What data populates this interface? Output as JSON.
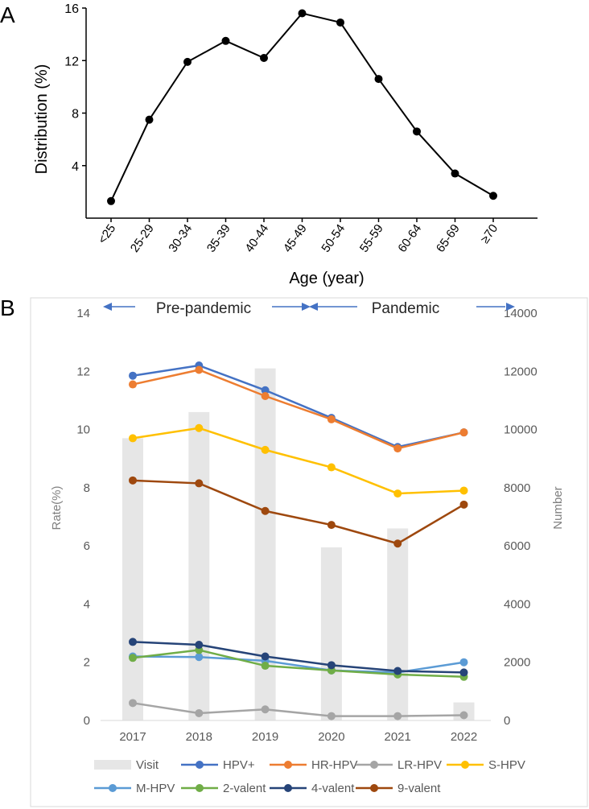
{
  "chart_data": [
    {
      "panel_label": "A",
      "type": "line",
      "categories": [
        "<25",
        "25-29",
        "30-34",
        "35-39",
        "40-44",
        "45-49",
        "50-54",
        "55-59",
        "60-64",
        "65-69",
        "≥70"
      ],
      "values": [
        1.3,
        7.5,
        11.9,
        13.5,
        12.2,
        15.6,
        14.9,
        10.6,
        6.6,
        3.4,
        1.7
      ],
      "ylabel": "Distribution (%)",
      "xlabel": "Age (year)",
      "ylim": [
        0,
        16
      ],
      "yticks": [
        4,
        8,
        12,
        16
      ],
      "color": "#000000"
    },
    {
      "panel_label": "B",
      "type": "line",
      "categories": [
        "2017",
        "2018",
        "2019",
        "2020",
        "2021",
        "2022"
      ],
      "ylabel_left": "Rate(%)",
      "ylabel_right": "Number",
      "ylim_left": [
        0,
        14
      ],
      "ylim_right": [
        0,
        14000
      ],
      "yticks_left": [
        0,
        2,
        4,
        6,
        8,
        10,
        12,
        14
      ],
      "yticks_right": [
        0,
        2000,
        4000,
        6000,
        8000,
        10000,
        12000,
        14000
      ],
      "annotations": {
        "pre": "Pre-pandemic",
        "pandemic": "Pandemic"
      },
      "bars": {
        "name": "Visit",
        "color": "#e6e6e6",
        "values": [
          9700,
          10600,
          12100,
          5950,
          6600,
          620
        ]
      },
      "series": [
        {
          "name": "HPV+",
          "color": "#4472c4",
          "values": [
            11.85,
            12.2,
            11.35,
            10.4,
            9.4,
            9.9
          ]
        },
        {
          "name": "HR-HPV",
          "color": "#ed7d31",
          "values": [
            11.55,
            12.05,
            11.15,
            10.35,
            9.35,
            9.9
          ]
        },
        {
          "name": "LR-HPV",
          "color": "#a5a5a5",
          "values": [
            0.6,
            0.25,
            0.38,
            0.15,
            0.15,
            0.18
          ]
        },
        {
          "name": "S-HPV",
          "color": "#ffc000",
          "values": [
            9.7,
            10.05,
            9.3,
            8.7,
            7.8,
            7.9
          ]
        },
        {
          "name": "M-HPV",
          "color": "#5b9bd5",
          "values": [
            2.2,
            2.18,
            2.05,
            1.72,
            1.65,
            2.0
          ]
        },
        {
          "name": "2-valent",
          "color": "#70ad47",
          "values": [
            2.15,
            2.42,
            1.88,
            1.72,
            1.58,
            1.5
          ]
        },
        {
          "name": "4-valent",
          "color": "#264478",
          "values": [
            2.7,
            2.6,
            2.2,
            1.9,
            1.7,
            1.65
          ]
        },
        {
          "name": "9-valent",
          "color": "#9e480e",
          "values": [
            8.25,
            8.15,
            7.2,
            6.72,
            6.08,
            7.42
          ]
        }
      ]
    }
  ]
}
